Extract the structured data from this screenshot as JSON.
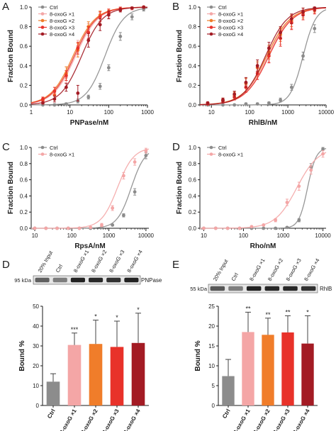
{
  "colors": {
    "ctrl": "#8c8c8c",
    "x1": "#f4a6a6",
    "x2": "#f07d2a",
    "x3": "#e8322a",
    "x4": "#a31b24",
    "band": "#1a1a1a",
    "axis": "#1a1a1a"
  },
  "panel_letters": [
    "A",
    "B",
    "C",
    "D",
    "D",
    "E"
  ],
  "chart_data": [
    {
      "id": "A",
      "type": "scatter",
      "xlabel": "PNPase/nM",
      "ylabel": "Fraction Bound",
      "xscale": "log",
      "xlim": [
        1,
        1000
      ],
      "ylim": [
        0,
        1
      ],
      "xticks": [
        1,
        10,
        100,
        1000
      ],
      "xtick_labels": [
        "1",
        "10",
        "100",
        "1000"
      ],
      "yticks": [
        0.0,
        0.2,
        0.4,
        0.6,
        0.8,
        1.0
      ],
      "ytick_labels": [
        "0.0",
        "0.2",
        "0.4",
        "0.6",
        "0.8",
        "1.0"
      ],
      "legend_position": "top-left",
      "series": [
        {
          "name": "Ctrl",
          "color_key": "ctrl",
          "kd": 80,
          "hill": 1.8,
          "x": [
            2,
            4,
            8,
            16,
            30,
            60,
            100,
            200,
            400,
            800
          ],
          "y": [
            0.0,
            0.0,
            0.01,
            0.04,
            0.08,
            0.19,
            0.38,
            0.7,
            0.9,
            0.98
          ],
          "err": [
            0.0,
            0.01,
            0.01,
            0.02,
            0.02,
            0.03,
            0.03,
            0.04,
            0.03,
            0.02
          ]
        },
        {
          "name": "8-oxoG ×1",
          "color_key": "x1",
          "kd": 14,
          "hill": 1.5,
          "x": [
            2,
            4,
            8,
            16,
            30,
            60,
            100,
            200,
            400,
            800
          ],
          "y": [
            0.04,
            0.12,
            0.28,
            0.6,
            0.77,
            0.9,
            0.92,
            0.98,
            0.99,
            1.0
          ],
          "err": [
            0.02,
            0.03,
            0.05,
            0.06,
            0.06,
            0.05,
            0.03,
            0.02,
            0.02,
            0.01
          ]
        },
        {
          "name": "8-oxoG ×2",
          "color_key": "x2",
          "kd": 12,
          "hill": 1.5,
          "x": [
            2,
            4,
            8,
            16,
            30,
            60,
            100,
            200,
            400,
            800
          ],
          "y": [
            0.05,
            0.1,
            0.32,
            0.56,
            0.8,
            0.92,
            0.94,
            0.98,
            0.99,
            1.0
          ],
          "err": [
            0.03,
            0.05,
            0.07,
            0.07,
            0.05,
            0.04,
            0.03,
            0.02,
            0.01,
            0.01
          ]
        },
        {
          "name": "8-oxoG ×3",
          "color_key": "x3",
          "kd": 13,
          "hill": 1.5,
          "x": [
            2,
            4,
            8,
            16,
            30,
            60,
            100,
            200,
            400,
            800
          ],
          "y": [
            0.06,
            0.14,
            0.3,
            0.58,
            0.74,
            0.9,
            0.95,
            0.98,
            0.99,
            1.0
          ],
          "err": [
            0.02,
            0.04,
            0.05,
            0.06,
            0.06,
            0.05,
            0.03,
            0.02,
            0.01,
            0.01
          ]
        },
        {
          "name": "8-oxoG ×4",
          "color_key": "x4",
          "kd": 20,
          "hill": 1.6,
          "x": [
            2,
            4,
            8,
            16,
            30,
            60,
            100,
            200,
            400,
            800
          ],
          "y": [
            0.02,
            0.06,
            0.18,
            0.12,
            0.66,
            0.82,
            0.92,
            0.97,
            0.99,
            1.0
          ],
          "err": [
            0.01,
            0.03,
            0.04,
            0.08,
            0.07,
            0.06,
            0.04,
            0.02,
            0.01,
            0.01
          ]
        }
      ]
    },
    {
      "id": "B",
      "type": "scatter",
      "xlabel": "RhlB/nM",
      "ylabel": "Fraction Bound",
      "xscale": "log",
      "xlim": [
        5,
        10000
      ],
      "ylim": [
        0,
        1
      ],
      "xticks": [
        10,
        100,
        1000,
        10000
      ],
      "xtick_labels": [
        "10",
        "100",
        "1000",
        "10000"
      ],
      "yticks": [
        0.0,
        0.2,
        0.4,
        0.6,
        0.8,
        1.0
      ],
      "ytick_labels": [
        "0.0",
        "0.2",
        "0.4",
        "0.6",
        "0.8",
        "1.0"
      ],
      "legend_position": "top-left",
      "series": [
        {
          "name": "Ctrl",
          "color_key": "ctrl",
          "kd": 2500,
          "hill": 2.6,
          "x": [
            8,
            20,
            40,
            80,
            160,
            320,
            640,
            1250,
            2500,
            5000
          ],
          "y": [
            0.0,
            0.0,
            0.0,
            0.01,
            0.01,
            0.02,
            0.05,
            0.18,
            0.5,
            0.78
          ],
          "err": [
            0.0,
            0.0,
            0.0,
            0.01,
            0.01,
            0.01,
            0.02,
            0.03,
            0.04,
            0.04
          ]
        },
        {
          "name": "8-oxoG ×1",
          "color_key": "x1",
          "kd": 300,
          "hill": 1.4,
          "x": [
            8,
            20,
            40,
            80,
            160,
            320,
            640,
            1250,
            2500,
            5000
          ],
          "y": [
            0.02,
            0.04,
            0.1,
            0.2,
            0.34,
            0.52,
            0.7,
            0.84,
            0.92,
            0.98
          ],
          "err": [
            0.01,
            0.02,
            0.04,
            0.07,
            0.08,
            0.08,
            0.08,
            0.06,
            0.05,
            0.04
          ]
        },
        {
          "name": "8-oxoG ×2",
          "color_key": "x2",
          "kd": 280,
          "hill": 1.4,
          "x": [
            8,
            20,
            40,
            80,
            160,
            320,
            640,
            1250,
            2500,
            5000
          ],
          "y": [
            0.02,
            0.05,
            0.1,
            0.22,
            0.38,
            0.54,
            0.72,
            0.86,
            0.94,
            0.98
          ],
          "err": [
            0.01,
            0.02,
            0.03,
            0.05,
            0.06,
            0.07,
            0.07,
            0.06,
            0.05,
            0.03
          ]
        },
        {
          "name": "8-oxoG ×3",
          "color_key": "x3",
          "kd": 320,
          "hill": 1.4,
          "x": [
            8,
            20,
            40,
            80,
            160,
            320,
            640,
            1250,
            2500,
            5000
          ],
          "y": [
            0.01,
            0.04,
            0.08,
            0.18,
            0.32,
            0.5,
            0.68,
            0.84,
            0.92,
            0.97
          ],
          "err": [
            0.01,
            0.02,
            0.03,
            0.05,
            0.06,
            0.07,
            0.08,
            0.07,
            0.05,
            0.04
          ]
        },
        {
          "name": "8-oxoG ×4",
          "color_key": "x4",
          "kd": 260,
          "hill": 1.5,
          "x": [
            8,
            20,
            40,
            80,
            160,
            320,
            640,
            1250,
            2500,
            5000
          ],
          "y": [
            0.02,
            0.05,
            0.11,
            0.23,
            0.4,
            0.58,
            0.74,
            0.88,
            0.95,
            0.99
          ],
          "err": [
            0.01,
            0.02,
            0.03,
            0.05,
            0.06,
            0.06,
            0.06,
            0.05,
            0.04,
            0.03
          ]
        }
      ]
    },
    {
      "id": "C",
      "type": "scatter",
      "xlabel": "RpsA/nM",
      "ylabel": "Fraction Bound",
      "xscale": "log",
      "xlim": [
        8,
        12000
      ],
      "ylim": [
        0,
        1
      ],
      "xticks": [
        10,
        100,
        1000,
        10000
      ],
      "xtick_labels": [
        "10",
        "100",
        "1000",
        "10000"
      ],
      "yticks": [
        0.0,
        0.2,
        0.4,
        0.6,
        0.8,
        1.0
      ],
      "ytick_labels": [
        "0.0",
        "0.2",
        "0.4",
        "0.6",
        "0.8",
        "1.0"
      ],
      "legend_position": "top-left",
      "series": [
        {
          "name": "Ctrl",
          "color_key": "ctrl",
          "kd": 4000,
          "hill": 2.3,
          "x": [
            10,
            20,
            40,
            80,
            160,
            320,
            640,
            1250,
            2500,
            5000,
            10000
          ],
          "y": [
            0.0,
            0.0,
            0.0,
            0.0,
            0.0,
            0.0,
            0.01,
            0.04,
            0.16,
            0.45,
            0.9
          ],
          "err": [
            0.0,
            0.0,
            0.0,
            0.0,
            0.0,
            0.0,
            0.01,
            0.01,
            0.02,
            0.04,
            0.04
          ]
        },
        {
          "name": "8-oxoG ×1",
          "color_key": "x1",
          "kd": 1700,
          "hill": 2.0,
          "x": [
            10,
            20,
            40,
            80,
            160,
            320,
            640,
            1250,
            2500,
            5000,
            10000
          ],
          "y": [
            0.0,
            0.0,
            0.0,
            0.0,
            0.0,
            0.01,
            0.04,
            0.25,
            0.65,
            0.82,
            0.96
          ],
          "err": [
            0.0,
            0.0,
            0.0,
            0.0,
            0.0,
            0.01,
            0.02,
            0.03,
            0.04,
            0.04,
            0.03
          ]
        }
      ]
    },
    {
      "id": "D",
      "type": "scatter",
      "xlabel": "Rho/nM",
      "ylabel": "Fraction Bound",
      "xscale": "log",
      "xlim": [
        8,
        12000
      ],
      "ylim": [
        0,
        1
      ],
      "xticks": [
        10,
        100,
        1000,
        10000
      ],
      "xtick_labels": [
        "10",
        "100",
        "1000",
        "10000"
      ],
      "yticks": [
        0.0,
        0.2,
        0.4,
        0.6,
        0.8,
        1.0
      ],
      "ytick_labels": [
        "0.0",
        "0.2",
        "0.4",
        "0.6",
        "0.8",
        "1.0"
      ],
      "legend_position": "top-left",
      "series": [
        {
          "name": "Ctrl",
          "color_key": "ctrl",
          "kd": 4100,
          "hill": 4.0,
          "x": [
            10,
            20,
            40,
            80,
            160,
            320,
            640,
            1250,
            2500,
            5000,
            10000
          ],
          "y": [
            0.0,
            0.0,
            0.0,
            0.0,
            0.0,
            0.0,
            0.0,
            0.01,
            0.1,
            0.76,
            0.98
          ],
          "err": [
            0.0,
            0.0,
            0.0,
            0.0,
            0.0,
            0.0,
            0.0,
            0.01,
            0.02,
            0.04,
            0.02
          ]
        },
        {
          "name": "8-oxoG ×1",
          "color_key": "x1",
          "kd": 2200,
          "hill": 1.6,
          "x": [
            10,
            20,
            40,
            80,
            160,
            320,
            640,
            1250,
            2500,
            5000,
            10000
          ],
          "y": [
            0.0,
            0.0,
            0.0,
            0.0,
            0.02,
            0.04,
            0.1,
            0.32,
            0.52,
            0.72,
            0.92
          ],
          "err": [
            0.0,
            0.0,
            0.0,
            0.0,
            0.01,
            0.01,
            0.02,
            0.04,
            0.05,
            0.05,
            0.04
          ]
        }
      ]
    },
    {
      "id": "D-bar",
      "type": "bar",
      "ylabel": "Bound %",
      "ylim": [
        0,
        50
      ],
      "yticks": [
        0,
        10,
        20,
        30,
        40,
        50
      ],
      "ytick_labels": [
        "0",
        "10",
        "20",
        "30",
        "40",
        "50"
      ],
      "categories": [
        "Ctrl",
        "8-oxoG ×1",
        "8-oxoG ×2",
        "8-oxoG ×3",
        "8-oxoG ×4"
      ],
      "color_keys": [
        "ctrl",
        "x1",
        "x2",
        "x3",
        "x4"
      ],
      "values": [
        12,
        30.5,
        31,
        29.5,
        31.5
      ],
      "errors": [
        4,
        6,
        12,
        13,
        15
      ],
      "significance": [
        "",
        "***",
        "*",
        "*",
        "*"
      ],
      "blot": {
        "marker": "95 kDa",
        "protein": "PNPase",
        "lanes": [
          "20% Input",
          "Ctrl",
          "8-oxoG ×1",
          "8-oxoG ×2",
          "8-oxoG ×3",
          "8-oxoG ×4"
        ],
        "intensities": [
          0.55,
          0.35,
          0.95,
          0.9,
          0.85,
          0.95
        ]
      }
    },
    {
      "id": "E",
      "type": "bar",
      "ylabel": "Bound %",
      "ylim": [
        0,
        25
      ],
      "yticks": [
        0,
        5,
        10,
        15,
        20,
        25
      ],
      "ytick_labels": [
        "0",
        "5",
        "10",
        "15",
        "20",
        "25"
      ],
      "categories": [
        "Ctrl",
        "8-oxoG ×1",
        "8-oxoG ×2",
        "8-oxoG ×3",
        "8-oxoG ×4"
      ],
      "color_keys": [
        "ctrl",
        "x1",
        "x2",
        "x3",
        "x4"
      ],
      "values": [
        7.4,
        18.5,
        17.8,
        18.4,
        15.6
      ],
      "errors": [
        4.2,
        5,
        4.2,
        4.2,
        7
      ],
      "significance": [
        "",
        "**",
        "**",
        "**",
        "*"
      ],
      "blot": {
        "marker": "55 kDa",
        "protein": "RhlB",
        "lanes": [
          "20% Input",
          "Ctrl",
          "8-oxoG ×1",
          "8-oxoG ×2",
          "8-oxoG ×3",
          "8-oxoG ×4"
        ],
        "intensities": [
          0.6,
          0.35,
          0.95,
          0.9,
          0.9,
          0.85
        ]
      }
    }
  ]
}
